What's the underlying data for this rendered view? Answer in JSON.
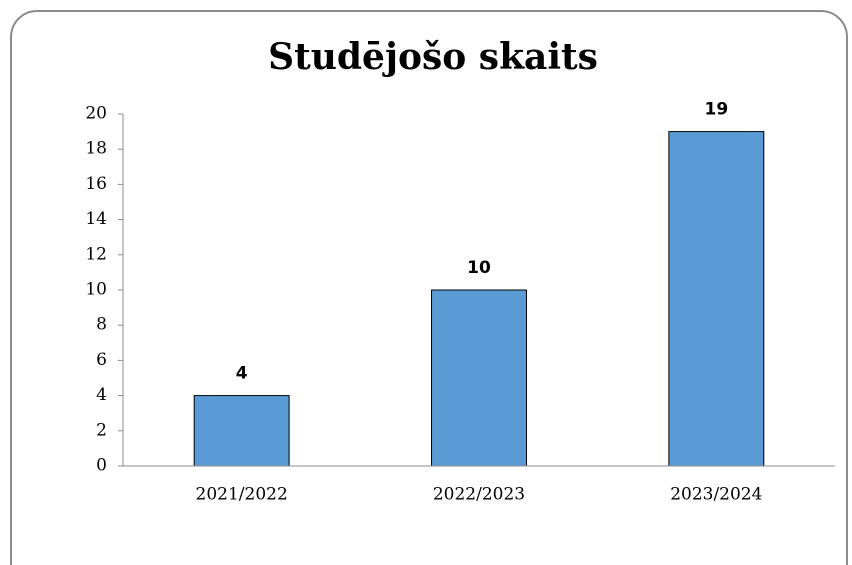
{
  "chart_data": {
    "type": "bar",
    "title": "Studējošo skaits",
    "categories": [
      "2021/2022",
      "2022/2023",
      "2023/2024"
    ],
    "values": [
      4,
      10,
      19
    ],
    "color": "#5b9bd5",
    "ylim": [
      0,
      20
    ],
    "yticks": [
      0,
      2,
      4,
      6,
      8,
      10,
      12,
      14,
      16,
      18,
      20
    ],
    "grid": false,
    "data_labels": true
  }
}
